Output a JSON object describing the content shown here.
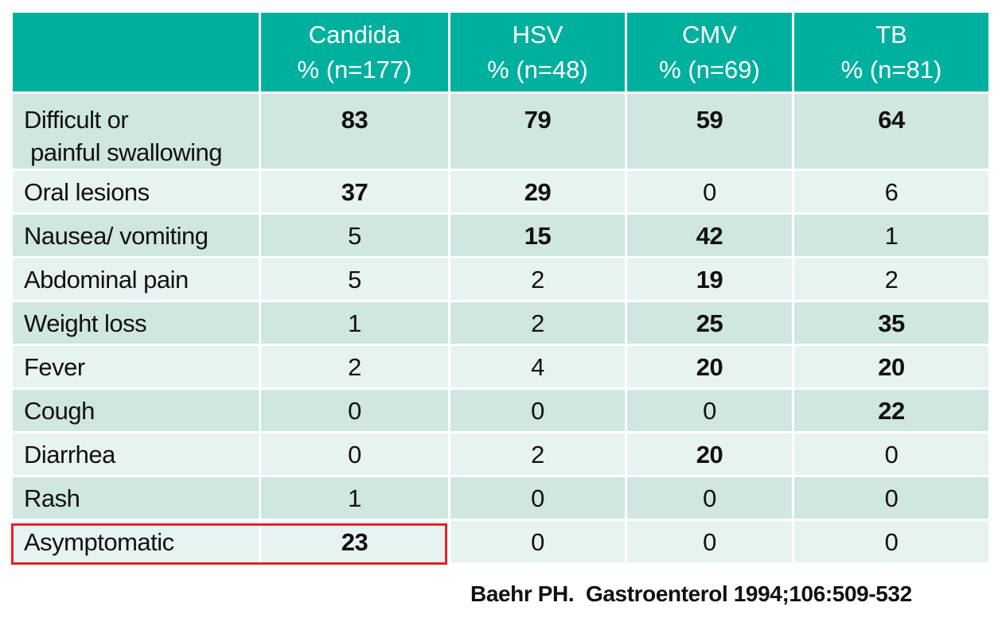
{
  "columns": [
    {
      "name": "Candida",
      "n": "% (n=177)"
    },
    {
      "name": "HSV",
      "n": "% (n=48)"
    },
    {
      "name": "CMV",
      "n": "% (n=69)"
    },
    {
      "name": "TB",
      "n": "% (n=81)"
    }
  ],
  "rows": [
    {
      "label": [
        "Difficult or",
        " painful swallowing"
      ],
      "values": [
        "83",
        "79",
        "59",
        "64"
      ],
      "bold": [
        true,
        true,
        true,
        true
      ]
    },
    {
      "label": [
        "Oral lesions"
      ],
      "values": [
        "37",
        "29",
        "0",
        "6"
      ],
      "bold": [
        true,
        true,
        false,
        false
      ]
    },
    {
      "label": [
        "Nausea/ vomiting"
      ],
      "values": [
        "5",
        "15",
        "42",
        "1"
      ],
      "bold": [
        false,
        true,
        true,
        false
      ]
    },
    {
      "label": [
        "Abdominal pain"
      ],
      "values": [
        "5",
        "2",
        "19",
        "2"
      ],
      "bold": [
        false,
        false,
        true,
        false
      ]
    },
    {
      "label": [
        "Weight loss"
      ],
      "values": [
        "1",
        "2",
        "25",
        "35"
      ],
      "bold": [
        false,
        false,
        true,
        true
      ]
    },
    {
      "label": [
        "Fever"
      ],
      "values": [
        "2",
        "4",
        "20",
        "20"
      ],
      "bold": [
        false,
        false,
        true,
        true
      ]
    },
    {
      "label": [
        "Cough"
      ],
      "values": [
        "0",
        "0",
        "0",
        "22"
      ],
      "bold": [
        false,
        false,
        false,
        true
      ]
    },
    {
      "label": [
        "Diarrhea"
      ],
      "values": [
        "0",
        "2",
        "20",
        "0"
      ],
      "bold": [
        false,
        false,
        true,
        false
      ]
    },
    {
      "label": [
        "Rash"
      ],
      "values": [
        "1",
        "0",
        "0",
        "0"
      ],
      "bold": [
        false,
        false,
        false,
        false
      ]
    },
    {
      "label": [
        "Asymptomatic"
      ],
      "values": [
        "23",
        "0",
        "0",
        "0"
      ],
      "bold": [
        true,
        false,
        false,
        false
      ]
    }
  ],
  "highlight": {
    "row_label": "Asymptomatic",
    "column": "Candida",
    "color": "#e0232b"
  },
  "colors": {
    "header_bg": "#00b09e",
    "row_dark": "#cfe6e1",
    "row_light": "#e7f3f1",
    "header_text": "#ffffff"
  },
  "citation": "Baehr PH.  Gastroenterol 1994;106:509-532"
}
